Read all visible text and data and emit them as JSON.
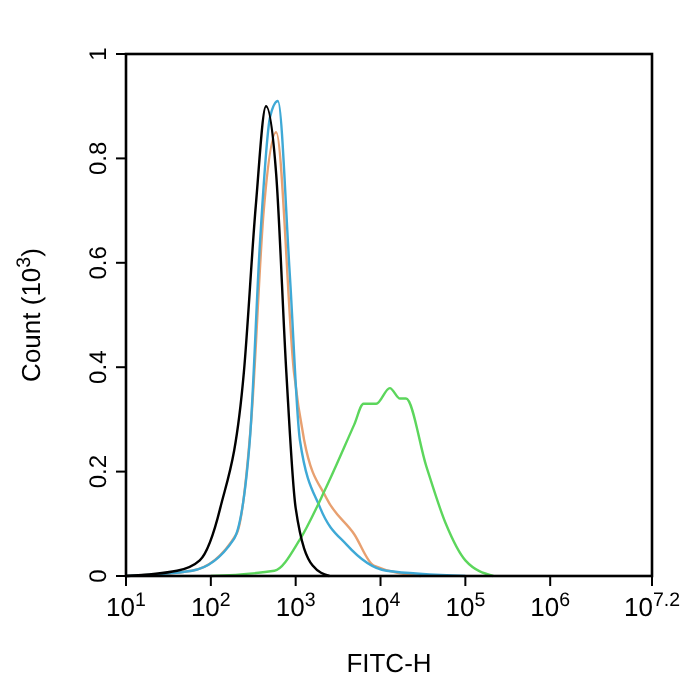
{
  "chart_data": {
    "type": "line",
    "xlabel": "FITC-H",
    "ylabel": "Count (10$^{3}$)",
    "log": "x",
    "grid": false,
    "marker": "none",
    "line_style": "solid",
    "xlim": [
      10,
      15848932
    ],
    "ylim": [
      0,
      1
    ],
    "xticks": [
      {
        "value": 10,
        "label": "10$^{1}$"
      },
      {
        "value": 100,
        "label": "10$^{2}$"
      },
      {
        "value": 1000,
        "label": "10$^{3}$"
      },
      {
        "value": 10000,
        "label": "10$^{4}$"
      },
      {
        "value": 100000,
        "label": "10$^{5}$"
      },
      {
        "value": 1000000,
        "label": "10$^{6}$"
      },
      {
        "value": 15848932,
        "label": "10$^{7.2}$"
      }
    ],
    "yticks": [
      0,
      0.2,
      0.4,
      0.6,
      0.8,
      1
    ],
    "series": [
      {
        "color": "#e8a070",
        "x": [
          10,
          60,
          200,
          300,
          420,
          589,
          955,
          1259,
          2291,
          4898,
          8318,
          30000
        ],
        "values": [
          0,
          0.01,
          0.08,
          0.3,
          0.7,
          0.85,
          0.39,
          0.26,
          0.15,
          0.08,
          0.02,
          0
        ]
      },
      {
        "color": "#3fa9d6",
        "x": [
          10,
          60,
          186,
          288,
          380,
          500,
          617,
          851,
          1122,
          1950,
          3981,
          11750,
          100000
        ],
        "values": [
          0,
          0.01,
          0.07,
          0.26,
          0.64,
          0.88,
          0.91,
          0.58,
          0.26,
          0.13,
          0.06,
          0.01,
          0
        ]
      },
      {
        "color": "#5cd65c",
        "x": [
          100,
          562,
          1122,
          2291,
          4898,
          6310,
          8913,
          12880,
          16980,
          19950,
          34670,
          58880,
          100000,
          213800
        ],
        "values": [
          0,
          0.01,
          0.07,
          0.17,
          0.29,
          0.33,
          0.33,
          0.36,
          0.34,
          0.34,
          0.21,
          0.1,
          0.03,
          0
        ]
      },
      {
        "color": "#000000",
        "x": [
          10,
          40,
          74,
          129,
          245,
          339,
          447,
          589,
          776,
          1000,
          1585,
          2500
        ],
        "values": [
          0,
          0.01,
          0.03,
          0.13,
          0.39,
          0.71,
          0.9,
          0.77,
          0.39,
          0.13,
          0.02,
          0
        ]
      }
    ]
  }
}
